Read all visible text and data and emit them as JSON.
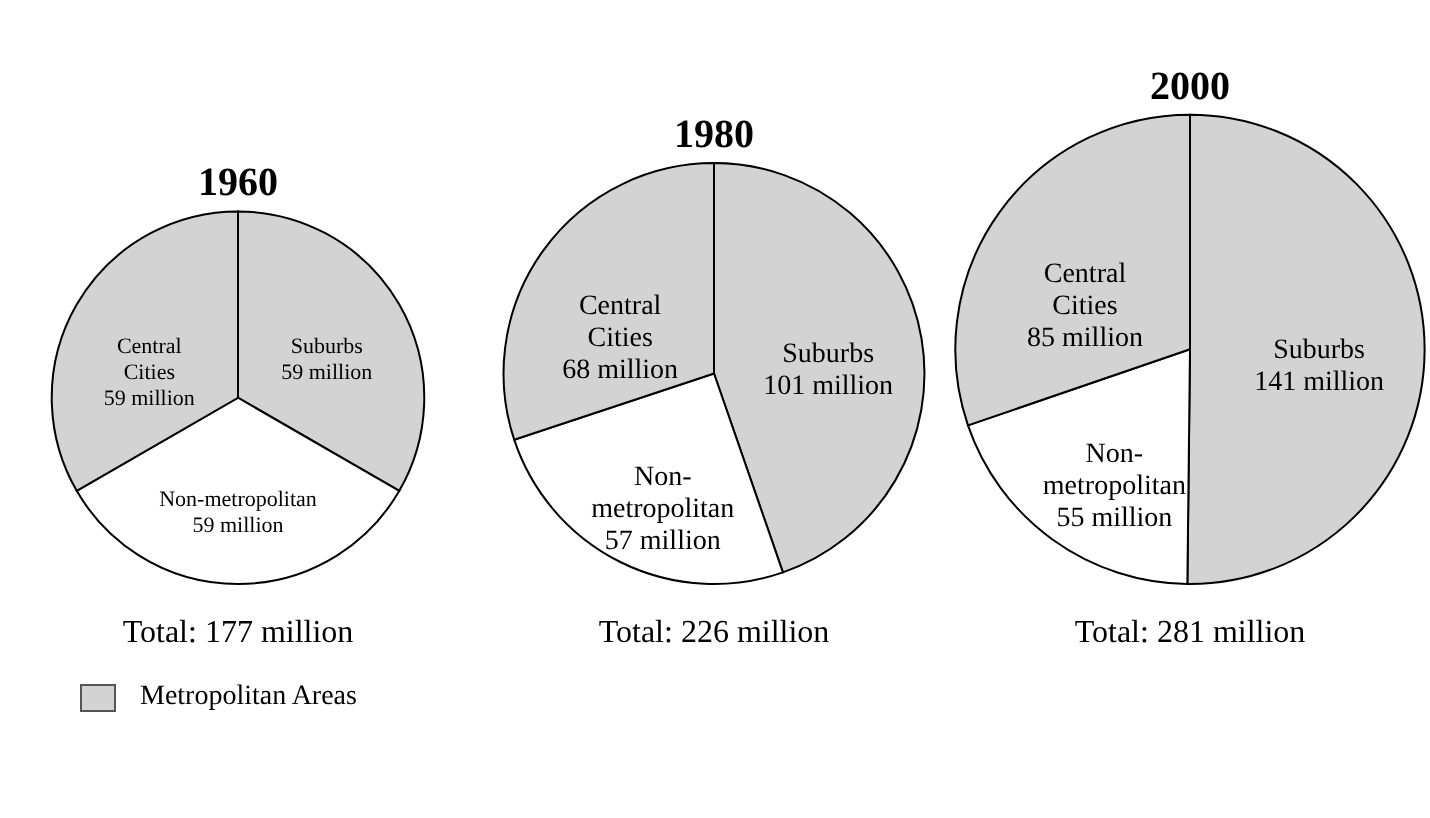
{
  "chart_data": [
    {
      "type": "pie",
      "title": "1960",
      "categories": [
        "Suburbs",
        "Non-metropolitan",
        "Central Cities"
      ],
      "values": [
        59,
        59,
        59
      ],
      "value_labels": [
        "59 million",
        "59 million",
        "59 million"
      ],
      "colors": [
        "#d3d3d3",
        "#ffffff",
        "#d3d3d3"
      ],
      "annotations": [
        "Total: 177 million"
      ],
      "legend_title": "Metropolitan Areas"
    },
    {
      "type": "pie",
      "title": "1980",
      "categories": [
        "Suburbs",
        "Non-metropolitan",
        "Central Cities"
      ],
      "values": [
        101,
        57,
        68
      ],
      "value_labels": [
        "101 million",
        "57 million",
        "68 million"
      ],
      "colors": [
        "#d3d3d3",
        "#ffffff",
        "#d3d3d3"
      ],
      "annotations": [
        "Total: 226 million"
      ]
    },
    {
      "type": "pie",
      "title": "2000",
      "categories": [
        "Suburbs",
        "Non-metropolitan",
        "Central Cities"
      ],
      "values": [
        141,
        55,
        85
      ],
      "value_labels": [
        "141 million",
        "55 million",
        "85 million"
      ],
      "colors": [
        "#d3d3d3",
        "#ffffff",
        "#d3d3d3"
      ],
      "annotations": [
        "Total: 281 million"
      ]
    }
  ]
}
